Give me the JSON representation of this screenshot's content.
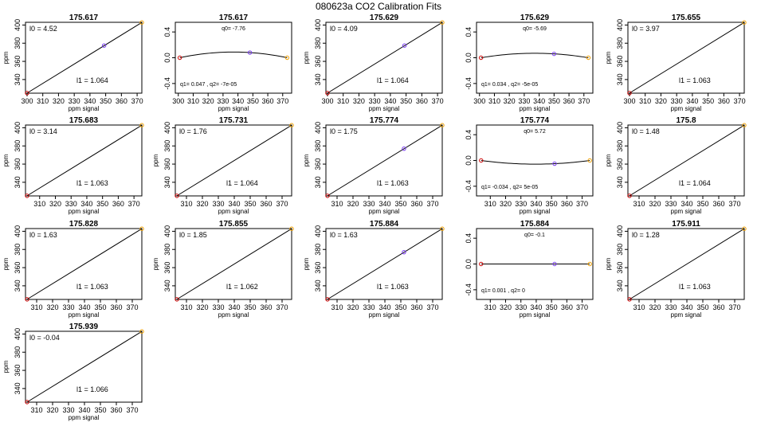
{
  "page": {
    "title": "080623a   CO2 Calibration Fits"
  },
  "colors": {
    "low": "#cc0000",
    "mid": "#7a3cf0",
    "high": "#f0a000",
    "line": "#000000"
  },
  "chart_data": [
    {
      "type": "line",
      "fit": "linear",
      "title": "175.617",
      "xlabel": "ppm signal",
      "ylabel": "ppm",
      "xlim": [
        299,
        373
      ],
      "ylim": [
        325,
        403
      ],
      "xticks": [
        300,
        310,
        320,
        330,
        340,
        350,
        360,
        370
      ],
      "yticks": [
        340,
        360,
        380,
        400
      ],
      "line": {
        "x": [
          300,
          373
        ],
        "y": [
          325.1,
          402.8
        ]
      },
      "points": {
        "x": [
          300,
          349,
          373
        ],
        "y": [
          325.1,
          377.4,
          402.8
        ]
      },
      "annotations": [
        {
          "label": "l0 =",
          "value": "4.52"
        },
        {
          "label": "l1 =",
          "value": "1.064"
        }
      ]
    },
    {
      "type": "line",
      "fit": "quadratic",
      "title": "175.617",
      "xlabel": "ppm signal",
      "ylabel": "",
      "xlim": [
        298,
        376
      ],
      "ylim": [
        -0.55,
        0.55
      ],
      "xticks": [
        300,
        310,
        320,
        330,
        340,
        350,
        360,
        370
      ],
      "yticks": [
        -0.4,
        0,
        0.4
      ],
      "ytick_labels": [
        "-0.4",
        "0.0",
        "0.4"
      ],
      "points": {
        "x": [
          301,
          348,
          373
        ],
        "y": [
          0,
          0.08,
          0
        ]
      },
      "annotations": [
        {
          "label": "q0=",
          "value": "-7.76"
        },
        {
          "label": "q1= 0.047 , q2=",
          "value": "-7e-05"
        }
      ]
    },
    {
      "type": "line",
      "fit": "linear",
      "title": "175.629",
      "xlabel": "ppm signal",
      "ylabel": "ppm",
      "xlim": [
        299,
        373
      ],
      "ylim": [
        325,
        403
      ],
      "xticks": [
        300,
        310,
        320,
        330,
        340,
        350,
        360,
        370
      ],
      "yticks": [
        340,
        360,
        380,
        400
      ],
      "line": {
        "x": [
          300,
          373
        ],
        "y": [
          325.1,
          402.8
        ]
      },
      "points": {
        "x": [
          300,
          349,
          373
        ],
        "y": [
          325.1,
          377.4,
          402.8
        ]
      },
      "annotations": [
        {
          "label": "l0 =",
          "value": "4.09"
        },
        {
          "label": "l1 =",
          "value": "1.064"
        }
      ]
    },
    {
      "type": "line",
      "fit": "quadratic",
      "title": "175.629",
      "xlabel": "ppm signal",
      "ylabel": "",
      "xlim": [
        298,
        376
      ],
      "ylim": [
        -0.55,
        0.55
      ],
      "xticks": [
        300,
        310,
        320,
        330,
        340,
        350,
        360,
        370
      ],
      "yticks": [
        -0.4,
        0,
        0.4
      ],
      "ytick_labels": [
        "-0.4",
        "0.0",
        "0.4"
      ],
      "points": {
        "x": [
          301,
          350,
          373
        ],
        "y": [
          0,
          0.06,
          0
        ]
      },
      "annotations": [
        {
          "label": "q0=",
          "value": "-5.69"
        },
        {
          "label": "q1= 0.034 , q2=",
          "value": "-5e-05"
        }
      ]
    },
    {
      "type": "line",
      "fit": "linear",
      "title": "175.655",
      "xlabel": "ppm signal",
      "ylabel": "ppm",
      "xlim": [
        299,
        373
      ],
      "ylim": [
        325,
        403
      ],
      "xticks": [
        300,
        310,
        320,
        330,
        340,
        350,
        360,
        370
      ],
      "yticks": [
        340,
        360,
        380,
        400
      ],
      "line": {
        "x": [
          300,
          373
        ],
        "y": [
          325.1,
          402.8
        ]
      },
      "points": {
        "x": [
          300,
          373
        ],
        "y": [
          325.1,
          402.8
        ]
      },
      "annotations": [
        {
          "label": "l0 =",
          "value": "3.97"
        },
        {
          "label": "l1 =",
          "value": "1.063"
        }
      ]
    },
    {
      "type": "line",
      "fit": "linear",
      "title": "175.683",
      "xlabel": "ppm signal",
      "ylabel": "ppm",
      "xlim": [
        301,
        375
      ],
      "ylim": [
        325,
        403
      ],
      "xticks": [
        310,
        320,
        330,
        340,
        350,
        360,
        370
      ],
      "yticks": [
        340,
        360,
        380,
        400
      ],
      "line": {
        "x": [
          302,
          375
        ],
        "y": [
          325.1,
          402.8
        ]
      },
      "points": {
        "x": [
          302,
          375
        ],
        "y": [
          325.1,
          402.8
        ]
      },
      "annotations": [
        {
          "label": "l0 =",
          "value": "3.14"
        },
        {
          "label": "l1 =",
          "value": "1.063"
        }
      ]
    },
    {
      "type": "line",
      "fit": "linear",
      "title": "175.731",
      "xlabel": "ppm signal",
      "ylabel": "ppm",
      "xlim": [
        303,
        376
      ],
      "ylim": [
        325,
        403
      ],
      "xticks": [
        310,
        320,
        330,
        340,
        350,
        360,
        370
      ],
      "yticks": [
        340,
        360,
        380,
        400
      ],
      "line": {
        "x": [
          304,
          376
        ],
        "y": [
          325.1,
          402.8
        ]
      },
      "points": {
        "x": [
          304,
          376
        ],
        "y": [
          325.1,
          402.8
        ]
      },
      "annotations": [
        {
          "label": "l0 =",
          "value": "1.76"
        },
        {
          "label": "l1 =",
          "value": "1.064"
        }
      ]
    },
    {
      "type": "line",
      "fit": "linear",
      "title": "175.774",
      "xlabel": "ppm signal",
      "ylabel": "ppm",
      "xlim": [
        303,
        376
      ],
      "ylim": [
        325,
        403
      ],
      "xticks": [
        310,
        320,
        330,
        340,
        350,
        360,
        370
      ],
      "yticks": [
        340,
        360,
        380,
        400
      ],
      "line": {
        "x": [
          304,
          376
        ],
        "y": [
          325.1,
          402.8
        ]
      },
      "points": {
        "x": [
          304,
          352,
          376
        ],
        "y": [
          325.1,
          377.0,
          402.8
        ]
      },
      "annotations": [
        {
          "label": "l0 =",
          "value": "1.75"
        },
        {
          "label": "l1 =",
          "value": "1.063"
        }
      ]
    },
    {
      "type": "line",
      "fit": "quadratic",
      "title": "175.774",
      "xlabel": "ppm signal",
      "ylabel": "",
      "xlim": [
        301,
        377
      ],
      "ylim": [
        -0.55,
        0.55
      ],
      "xticks": [
        310,
        320,
        330,
        340,
        350,
        360,
        370
      ],
      "yticks": [
        -0.4,
        0,
        0.4
      ],
      "ytick_labels": [
        "-0.4",
        "0.0",
        "0.4"
      ],
      "points": {
        "x": [
          304,
          352,
          375
        ],
        "y": [
          0,
          -0.05,
          0
        ]
      },
      "annotations": [
        {
          "label": "q0=",
          "value": "5.72"
        },
        {
          "label": "q1= -0.034 , q2=",
          "value": "5e-05"
        }
      ]
    },
    {
      "type": "line",
      "fit": "linear",
      "title": "175.8",
      "xlabel": "ppm signal",
      "ylabel": "ppm",
      "xlim": [
        303,
        376
      ],
      "ylim": [
        325,
        403
      ],
      "xticks": [
        310,
        320,
        330,
        340,
        350,
        360,
        370
      ],
      "yticks": [
        340,
        360,
        380,
        400
      ],
      "line": {
        "x": [
          304,
          376
        ],
        "y": [
          325.1,
          402.8
        ]
      },
      "points": {
        "x": [
          304,
          376
        ],
        "y": [
          325.1,
          402.8
        ]
      },
      "annotations": [
        {
          "label": "l0 =",
          "value": "1.48"
        },
        {
          "label": "l1 =",
          "value": "1.064"
        }
      ]
    },
    {
      "type": "line",
      "fit": "linear",
      "title": "175.828",
      "xlabel": "ppm signal",
      "ylabel": "ppm",
      "xlim": [
        303,
        376
      ],
      "ylim": [
        325,
        403
      ],
      "xticks": [
        310,
        320,
        330,
        340,
        350,
        360,
        370
      ],
      "yticks": [
        340,
        360,
        380,
        400
      ],
      "line": {
        "x": [
          304,
          376
        ],
        "y": [
          325.1,
          402.8
        ]
      },
      "points": {
        "x": [
          304,
          376
        ],
        "y": [
          325.1,
          402.8
        ]
      },
      "annotations": [
        {
          "label": "l0 =",
          "value": "1.63"
        },
        {
          "label": "l1 =",
          "value": "1.063"
        }
      ]
    },
    {
      "type": "line",
      "fit": "linear",
      "title": "175.855",
      "xlabel": "ppm signal",
      "ylabel": "ppm",
      "xlim": [
        303,
        376
      ],
      "ylim": [
        325,
        403
      ],
      "xticks": [
        310,
        320,
        330,
        340,
        350,
        360,
        370
      ],
      "yticks": [
        340,
        360,
        380,
        400
      ],
      "line": {
        "x": [
          304,
          376
        ],
        "y": [
          325.1,
          402.8
        ]
      },
      "points": {
        "x": [
          304,
          376
        ],
        "y": [
          325.1,
          402.8
        ]
      },
      "annotations": [
        {
          "label": "l0 =",
          "value": "1.85"
        },
        {
          "label": "l1 =",
          "value": "1.062"
        }
      ]
    },
    {
      "type": "line",
      "fit": "linear",
      "title": "175.884",
      "xlabel": "ppm signal",
      "ylabel": "ppm",
      "xlim": [
        303,
        376
      ],
      "ylim": [
        325,
        403
      ],
      "xticks": [
        310,
        320,
        330,
        340,
        350,
        360,
        370
      ],
      "yticks": [
        340,
        360,
        380,
        400
      ],
      "line": {
        "x": [
          304,
          376
        ],
        "y": [
          325.1,
          402.8
        ]
      },
      "points": {
        "x": [
          304,
          352,
          376
        ],
        "y": [
          325.1,
          377.0,
          402.8
        ]
      },
      "annotations": [
        {
          "label": "l0 =",
          "value": "1.63"
        },
        {
          "label": "l1 =",
          "value": "1.063"
        }
      ]
    },
    {
      "type": "line",
      "fit": "quadratic",
      "title": "175.884",
      "xlabel": "ppm signal",
      "ylabel": "",
      "xlim": [
        301,
        377
      ],
      "ylim": [
        -0.55,
        0.55
      ],
      "xticks": [
        310,
        320,
        330,
        340,
        350,
        360,
        370
      ],
      "yticks": [
        -0.4,
        0,
        0.4
      ],
      "ytick_labels": [
        "-0.4",
        "0.0",
        "0.4"
      ],
      "points": {
        "x": [
          304,
          352,
          375
        ],
        "y": [
          0,
          0,
          0
        ]
      },
      "annotations": [
        {
          "label": "q0=",
          "value": "-0.1"
        },
        {
          "label": "q1= 0.001 , q2=",
          "value": "0"
        }
      ]
    },
    {
      "type": "line",
      "fit": "linear",
      "title": "175.911",
      "xlabel": "ppm signal",
      "ylabel": "ppm",
      "xlim": [
        303,
        376
      ],
      "ylim": [
        325,
        403
      ],
      "xticks": [
        310,
        320,
        330,
        340,
        350,
        360,
        370
      ],
      "yticks": [
        340,
        360,
        380,
        400
      ],
      "line": {
        "x": [
          304,
          376
        ],
        "y": [
          325.1,
          402.8
        ]
      },
      "points": {
        "x": [
          304,
          376
        ],
        "y": [
          325.1,
          402.8
        ]
      },
      "annotations": [
        {
          "label": "l0 =",
          "value": "1.28"
        },
        {
          "label": "l1 =",
          "value": "1.063"
        }
      ]
    },
    {
      "type": "line",
      "fit": "linear",
      "title": "175.939",
      "xlabel": "ppm signal",
      "ylabel": "ppm",
      "xlim": [
        303,
        376
      ],
      "ylim": [
        325,
        403
      ],
      "xticks": [
        310,
        320,
        330,
        340,
        350,
        360,
        370
      ],
      "yticks": [
        340,
        360,
        380,
        400
      ],
      "line": {
        "x": [
          304,
          376
        ],
        "y": [
          325.1,
          402.8
        ]
      },
      "points": {
        "x": [
          304,
          376
        ],
        "y": [
          325.1,
          402.8
        ]
      },
      "annotations": [
        {
          "label": "l0 =",
          "value": "-0.04"
        },
        {
          "label": "l1 =",
          "value": "1.066"
        }
      ]
    }
  ]
}
